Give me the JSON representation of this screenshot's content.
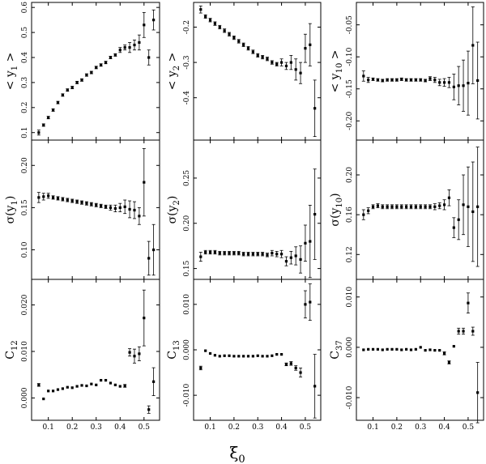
{
  "x_axis_label": "ξ",
  "x_axis_label_sub": "0",
  "chart_data": [
    {
      "panel": "mean-y1",
      "type": "scatter",
      "ylabel": "< y",
      "ylabel_sub": "1",
      "ylabel_tail": " >",
      "x": [
        0.06,
        0.08,
        0.1,
        0.12,
        0.14,
        0.16,
        0.18,
        0.2,
        0.22,
        0.24,
        0.26,
        0.28,
        0.3,
        0.32,
        0.34,
        0.36,
        0.38,
        0.4,
        0.42,
        0.44,
        0.46,
        0.48,
        0.5,
        0.52,
        0.54
      ],
      "y": [
        0.1,
        0.13,
        0.16,
        0.19,
        0.22,
        0.25,
        0.27,
        0.28,
        0.3,
        0.31,
        0.33,
        0.34,
        0.36,
        0.37,
        0.38,
        0.4,
        0.41,
        0.43,
        0.44,
        0.44,
        0.45,
        0.46,
        0.53,
        0.4,
        0.55
      ],
      "err": [
        0.01,
        0.005,
        0.005,
        0.005,
        0.005,
        0.005,
        0.005,
        0.005,
        0.005,
        0.005,
        0.005,
        0.005,
        0.005,
        0.005,
        0.005,
        0.005,
        0.005,
        0.01,
        0.01,
        0.02,
        0.02,
        0.03,
        0.05,
        0.03,
        0.04
      ],
      "ylim": [
        0.07,
        0.62
      ],
      "yticks": [
        0.1,
        0.2,
        0.3,
        0.4,
        0.5,
        0.6
      ],
      "ytick_labels": [
        "0.1",
        "0.2",
        "0.3",
        "0.4",
        "0.5",
        "0.6"
      ]
    },
    {
      "panel": "mean-y2",
      "type": "scatter",
      "ylabel": "< y",
      "ylabel_sub": "2",
      "ylabel_tail": " >",
      "x": [
        0.06,
        0.08,
        0.1,
        0.12,
        0.14,
        0.16,
        0.18,
        0.2,
        0.22,
        0.24,
        0.26,
        0.28,
        0.3,
        0.32,
        0.34,
        0.36,
        0.38,
        0.4,
        0.42,
        0.44,
        0.46,
        0.48,
        0.5,
        0.52,
        0.54
      ],
      "y": [
        -0.15,
        -0.17,
        -0.18,
        -0.19,
        -0.2,
        -0.21,
        -0.22,
        -0.23,
        -0.24,
        -0.25,
        -0.26,
        -0.27,
        -0.28,
        -0.285,
        -0.29,
        -0.3,
        -0.305,
        -0.3,
        -0.31,
        -0.3,
        -0.32,
        -0.33,
        -0.26,
        -0.25,
        -0.43
      ],
      "err": [
        0.01,
        0.005,
        0.005,
        0.005,
        0.005,
        0.005,
        0.005,
        0.005,
        0.005,
        0.005,
        0.005,
        0.005,
        0.005,
        0.005,
        0.005,
        0.005,
        0.005,
        0.01,
        0.01,
        0.02,
        0.03,
        0.03,
        0.04,
        0.06,
        0.08
      ],
      "ylim": [
        -0.52,
        -0.13
      ],
      "yticks": [
        -0.2,
        -0.3,
        -0.4
      ],
      "ytick_labels": [
        "-0.2",
        "-0.3",
        "-0.4"
      ]
    },
    {
      "panel": "mean-y10",
      "type": "scatter",
      "ylabel": "< y",
      "ylabel_sub": "10",
      "ylabel_tail": " >",
      "x": [
        0.06,
        0.08,
        0.1,
        0.12,
        0.14,
        0.16,
        0.18,
        0.2,
        0.22,
        0.24,
        0.26,
        0.28,
        0.3,
        0.32,
        0.34,
        0.36,
        0.38,
        0.4,
        0.42,
        0.44,
        0.46,
        0.48,
        0.5,
        0.52,
        0.54
      ],
      "y": [
        -0.13,
        -0.136,
        -0.135,
        -0.136,
        -0.137,
        -0.136,
        -0.136,
        -0.136,
        -0.135,
        -0.136,
        -0.136,
        -0.136,
        -0.136,
        -0.137,
        -0.134,
        -0.136,
        -0.14,
        -0.14,
        -0.14,
        -0.147,
        -0.145,
        -0.145,
        -0.141,
        -0.082,
        -0.137
      ],
      "err": [
        0.008,
        0.004,
        0.002,
        0.002,
        0.002,
        0.002,
        0.002,
        0.002,
        0.002,
        0.002,
        0.002,
        0.002,
        0.002,
        0.002,
        0.003,
        0.004,
        0.005,
        0.006,
        0.008,
        0.02,
        0.03,
        0.04,
        0.05,
        0.06,
        0.06
      ],
      "ylim": [
        -0.23,
        -0.015
      ],
      "yticks": [
        -0.05,
        -0.1,
        -0.15,
        -0.2
      ],
      "ytick_labels": [
        "-0.05",
        "-0.10",
        "-0.15",
        "-0.20"
      ]
    },
    {
      "panel": "sigma-y1",
      "type": "scatter",
      "ylabel": "σ(y",
      "ylabel_sub": "1",
      "ylabel_tail": ")",
      "x": [
        0.06,
        0.08,
        0.1,
        0.12,
        0.14,
        0.16,
        0.18,
        0.2,
        0.22,
        0.24,
        0.26,
        0.28,
        0.3,
        0.32,
        0.34,
        0.36,
        0.38,
        0.4,
        0.42,
        0.44,
        0.46,
        0.48,
        0.5,
        0.52,
        0.54
      ],
      "y": [
        0.162,
        0.163,
        0.164,
        0.162,
        0.161,
        0.16,
        0.159,
        0.158,
        0.157,
        0.156,
        0.155,
        0.154,
        0.153,
        0.152,
        0.151,
        0.15,
        0.149,
        0.15,
        0.151,
        0.148,
        0.147,
        0.14,
        0.18,
        0.09,
        0.1
      ],
      "err": [
        0.006,
        0.004,
        0.003,
        0.002,
        0.002,
        0.002,
        0.002,
        0.002,
        0.002,
        0.002,
        0.002,
        0.002,
        0.002,
        0.002,
        0.002,
        0.003,
        0.004,
        0.005,
        0.008,
        0.01,
        0.01,
        0.01,
        0.04,
        0.02,
        0.03
      ],
      "ylim": [
        0.065,
        0.23
      ],
      "yticks": [
        0.1,
        0.15,
        0.2
      ],
      "ytick_labels": [
        "0.10",
        "0.15",
        "0.20"
      ]
    },
    {
      "panel": "sigma-y2",
      "type": "scatter",
      "ylabel": "σ(y",
      "ylabel_sub": "2",
      "ylabel_tail": ")",
      "x": [
        0.06,
        0.08,
        0.1,
        0.12,
        0.14,
        0.16,
        0.18,
        0.2,
        0.22,
        0.24,
        0.26,
        0.28,
        0.3,
        0.32,
        0.34,
        0.36,
        0.38,
        0.4,
        0.42,
        0.44,
        0.46,
        0.48,
        0.5,
        0.52,
        0.54
      ],
      "y": [
        0.163,
        0.168,
        0.168,
        0.168,
        0.167,
        0.167,
        0.167,
        0.167,
        0.167,
        0.166,
        0.166,
        0.166,
        0.166,
        0.166,
        0.165,
        0.167,
        0.166,
        0.166,
        0.158,
        0.162,
        0.164,
        0.16,
        0.178,
        0.18,
        0.21
      ],
      "err": [
        0.005,
        0.002,
        0.002,
        0.002,
        0.002,
        0.002,
        0.002,
        0.002,
        0.002,
        0.002,
        0.002,
        0.002,
        0.002,
        0.002,
        0.002,
        0.003,
        0.003,
        0.004,
        0.005,
        0.007,
        0.01,
        0.015,
        0.02,
        0.04,
        0.05
      ],
      "ylim": [
        0.138,
        0.292
      ],
      "yticks": [
        0.15,
        0.2,
        0.25
      ],
      "ytick_labels": [
        "0.15",
        "0.20",
        "0.25"
      ]
    },
    {
      "panel": "sigma-y10",
      "type": "scatter",
      "ylabel": "σ(y",
      "ylabel_sub": "10",
      "ylabel_tail": ")",
      "x": [
        0.06,
        0.08,
        0.1,
        0.12,
        0.14,
        0.16,
        0.18,
        0.2,
        0.22,
        0.24,
        0.26,
        0.28,
        0.3,
        0.32,
        0.34,
        0.36,
        0.38,
        0.4,
        0.42,
        0.44,
        0.46,
        0.48,
        0.5,
        0.52,
        0.54
      ],
      "y": [
        0.16,
        0.164,
        0.168,
        0.169,
        0.168,
        0.168,
        0.168,
        0.168,
        0.168,
        0.168,
        0.168,
        0.168,
        0.168,
        0.168,
        0.168,
        0.168,
        0.169,
        0.17,
        0.177,
        0.147,
        0.155,
        0.17,
        0.168,
        0.163,
        0.168
      ],
      "err": [
        0.005,
        0.003,
        0.002,
        0.002,
        0.002,
        0.002,
        0.002,
        0.002,
        0.002,
        0.002,
        0.002,
        0.002,
        0.002,
        0.002,
        0.002,
        0.003,
        0.003,
        0.005,
        0.008,
        0.01,
        0.02,
        0.03,
        0.04,
        0.05,
        0.06
      ],
      "ylim": [
        0.095,
        0.235
      ],
      "yticks": [
        0.12,
        0.16,
        0.2
      ],
      "ytick_labels": [
        "0.12",
        "0.16",
        "0.20"
      ]
    },
    {
      "panel": "c12",
      "type": "scatter",
      "ylabel": "C",
      "ylabel_sub": "12",
      "ylabel_tail": "",
      "x": [
        0.06,
        0.08,
        0.1,
        0.12,
        0.14,
        0.16,
        0.18,
        0.2,
        0.22,
        0.24,
        0.26,
        0.28,
        0.3,
        0.32,
        0.34,
        0.36,
        0.38,
        0.4,
        0.42,
        0.44,
        0.46,
        0.48,
        0.5,
        0.52,
        0.54
      ],
      "y": [
        0.0028,
        -0.0002,
        0.0015,
        0.0015,
        0.0018,
        0.002,
        0.0023,
        0.0022,
        0.0025,
        0.0027,
        0.0026,
        0.003,
        0.0028,
        0.0038,
        0.0038,
        0.0032,
        0.0028,
        0.0025,
        0.0026,
        0.0098,
        0.009,
        0.0095,
        0.0172,
        -0.0025,
        0.0035
      ],
      "err": [
        0.0003,
        0.0002,
        0.0002,
        0.0002,
        0.0002,
        0.0002,
        0.0002,
        0.0002,
        0.0002,
        0.0002,
        0.0002,
        0.0002,
        0.0002,
        0.0002,
        0.0002,
        0.0002,
        0.0002,
        0.0002,
        0.0003,
        0.0008,
        0.0015,
        0.0015,
        0.006,
        0.0008,
        0.003
      ],
      "ylim": [
        -0.0048,
        0.0255
      ],
      "yticks": [
        0.0,
        0.01,
        0.02
      ],
      "ytick_labels": [
        "0.000",
        "0.010",
        "0.020"
      ]
    },
    {
      "panel": "c13",
      "type": "scatter",
      "ylabel": "C",
      "ylabel_sub": "13",
      "ylabel_tail": "",
      "x": [
        0.06,
        0.08,
        0.1,
        0.12,
        0.14,
        0.16,
        0.18,
        0.2,
        0.22,
        0.24,
        0.26,
        0.28,
        0.3,
        0.32,
        0.34,
        0.36,
        0.38,
        0.4,
        0.42,
        0.44,
        0.46,
        0.48,
        0.5,
        0.52,
        0.54
      ],
      "y": [
        -0.004,
        -0.0002,
        -0.0008,
        -0.0012,
        -0.0014,
        -0.0013,
        -0.0013,
        -0.0014,
        -0.0014,
        -0.0014,
        -0.0014,
        -0.0014,
        -0.0013,
        -0.0014,
        -0.0014,
        -0.0013,
        -0.001,
        -0.001,
        -0.0032,
        -0.003,
        -0.004,
        -0.005,
        0.01,
        0.0105,
        -0.008
      ],
      "err": [
        0.0004,
        0.0002,
        0.0002,
        0.0002,
        0.0002,
        0.0002,
        0.0002,
        0.0002,
        0.0002,
        0.0002,
        0.0002,
        0.0002,
        0.0002,
        0.0002,
        0.0002,
        0.0002,
        0.0002,
        0.0002,
        0.0003,
        0.0004,
        0.0005,
        0.001,
        0.003,
        0.004,
        0.007
      ],
      "ylim": [
        -0.0155,
        0.0155
      ],
      "yticks": [
        -0.01,
        0.0,
        0.01
      ],
      "ytick_labels": [
        "-0.010",
        "0.000",
        "0.010"
      ]
    },
    {
      "panel": "c37",
      "type": "scatter",
      "ylabel": "C",
      "ylabel_sub": "37",
      "ylabel_tail": "",
      "x": [
        0.06,
        0.08,
        0.1,
        0.12,
        0.14,
        0.16,
        0.18,
        0.2,
        0.22,
        0.24,
        0.26,
        0.28,
        0.3,
        0.32,
        0.34,
        0.36,
        0.38,
        0.4,
        0.42,
        0.44,
        0.46,
        0.48,
        0.5,
        0.52,
        0.54
      ],
      "y": [
        -0.0005,
        -0.0004,
        -0.0004,
        -0.0004,
        -0.0005,
        -0.0004,
        -0.0004,
        -0.0004,
        -0.0005,
        -0.0004,
        -0.0005,
        -0.0004,
        0.0,
        -0.0006,
        -0.0005,
        -0.0006,
        -0.0006,
        -0.0012,
        -0.003,
        0.0002,
        0.0032,
        0.0032,
        0.0088,
        0.0032,
        -0.009
      ],
      "err": [
        0.0002,
        0.0002,
        0.0002,
        0.0002,
        0.0002,
        0.0002,
        0.0002,
        0.0002,
        0.0002,
        0.0002,
        0.0002,
        0.0002,
        0.0002,
        0.0002,
        0.0002,
        0.0002,
        0.0002,
        0.0003,
        0.0003,
        0.0002,
        0.0006,
        0.0006,
        0.002,
        0.0008,
        0.006
      ],
      "ylim": [
        -0.0145,
        0.0135
      ],
      "yticks": [
        -0.01,
        0.0,
        0.01
      ],
      "ytick_labels": [
        "-0.010",
        "0.000",
        "0.010"
      ]
    }
  ],
  "x_axis": {
    "xlim": [
      0.03,
      0.565
    ],
    "xticks": [
      0.1,
      0.2,
      0.3,
      0.4,
      0.5
    ],
    "xtick_labels": [
      "0.1",
      "0.2",
      "0.3",
      "0.4",
      "0.5"
    ]
  }
}
